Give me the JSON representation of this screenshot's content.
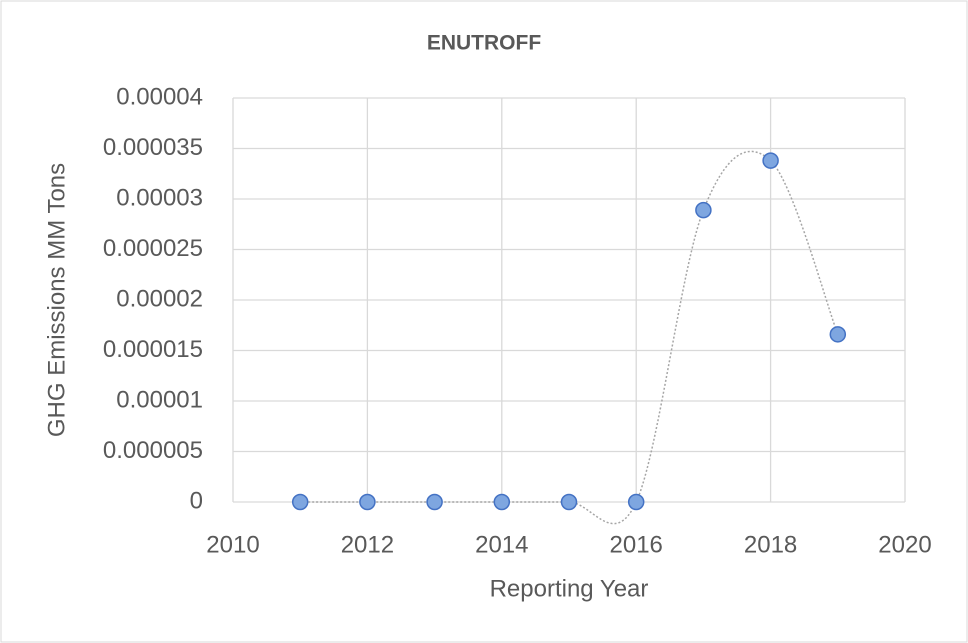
{
  "chart_data": {
    "type": "scatter",
    "title": "ENUTROFF",
    "x_label": "Reporting Year",
    "y_label": "GHG Emissions MM Tons",
    "series": [
      {
        "name": "ENUTROFF",
        "color": "#7ea6e0",
        "x": [
          2011,
          2012,
          2013,
          2014,
          2015,
          2016,
          2017,
          2018,
          2019
        ],
        "values": [
          0,
          0,
          0,
          0,
          0,
          0,
          2.89e-05,
          3.38e-05,
          1.66e-05
        ]
      }
    ],
    "xlim": [
      2010,
      2020
    ],
    "xticks": [
      2010,
      2012,
      2014,
      2016,
      2018,
      2020
    ],
    "ylim": [
      0,
      4e-05
    ],
    "yticks": [
      0,
      5e-06,
      1e-05,
      1.5e-05,
      2e-05,
      2.5e-05,
      3e-05,
      3.5e-05,
      4e-05
    ],
    "grid": true,
    "smooth_line": true
  }
}
